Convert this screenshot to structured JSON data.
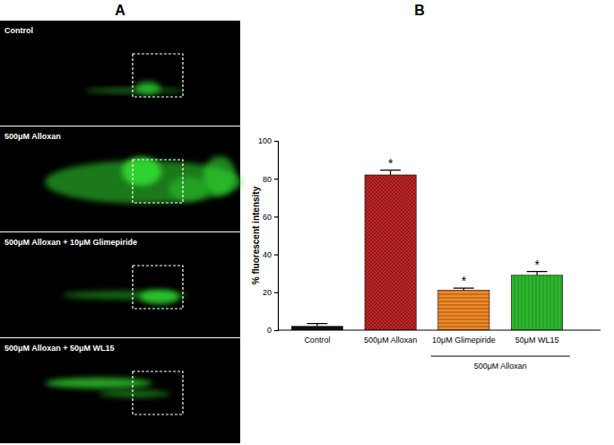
{
  "panel_a": {
    "label": "A",
    "images": [
      "Control",
      "500μM Alloxan",
      "500μM Alloxan + 10μM Glimepiride",
      "500μM Alloxan + 50μM WL15"
    ]
  },
  "panel_b": {
    "label": "B"
  },
  "chart_data": {
    "type": "bar",
    "categories": [
      "Control",
      "500μM Alloxan",
      "10μM Glimepiride",
      "50μM WL15"
    ],
    "values": [
      2,
      82,
      21,
      29
    ],
    "errors": [
      1.5,
      2.5,
      1.2,
      2
    ],
    "colors": [
      "#111111",
      "#8b1a1a",
      "#d2691e",
      "#2cb52c"
    ],
    "significance": [
      null,
      "*",
      "*",
      "*"
    ],
    "groups": [
      {
        "label": "500μM Alloxan",
        "members": [
          "10μM Glimepiride",
          "50μM WL15"
        ]
      }
    ],
    "y_label": "% fluorescent intensity",
    "ylim": [
      0,
      100
    ],
    "yticks": [
      0,
      20,
      40,
      60,
      80,
      100
    ],
    "grid": false
  }
}
